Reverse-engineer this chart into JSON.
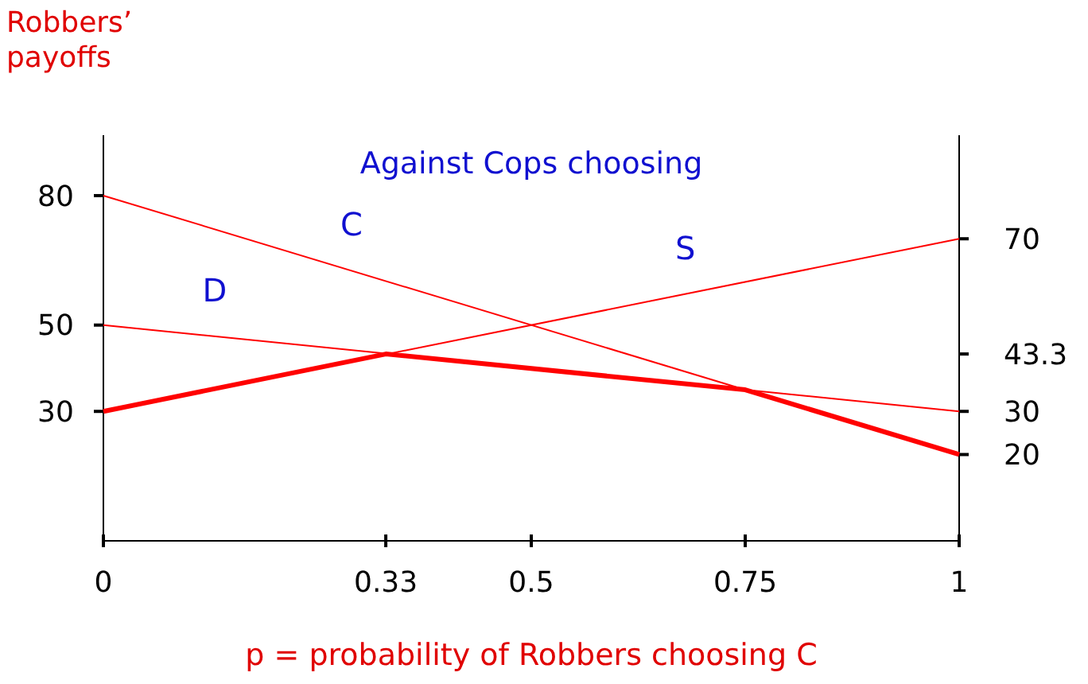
{
  "chart_data": {
    "type": "line",
    "title": "Against Cops choosing",
    "xlabel": "p = probability of Robbers choosing C",
    "ylabel": "Robbers’ payoffs",
    "xlim": [
      0,
      1
    ],
    "xticks": [
      0,
      0.33,
      0.5,
      0.75,
      1
    ],
    "ylim": [
      0,
      94
    ],
    "yticks": [
      80,
      50,
      30
    ],
    "y2lim": [
      0,
      94
    ],
    "y2ticks": [
      70,
      43.3,
      30,
      20
    ],
    "grid": false,
    "series": [
      {
        "name": "C",
        "color": "#ff0000",
        "x": [
          0,
          1
        ],
        "values": [
          80,
          20
        ]
      },
      {
        "name": "S",
        "color": "#ff0000",
        "x": [
          0,
          1
        ],
        "values": [
          30,
          70
        ]
      },
      {
        "name": "D",
        "color": "#ff0000",
        "x": [
          0,
          1
        ],
        "values": [
          50,
          30
        ]
      },
      {
        "color": "#ff0000",
        "x": [
          0,
          0.33,
          0.75,
          1
        ],
        "values": [
          30,
          43.3,
          35,
          20
        ]
      }
    ]
  }
}
